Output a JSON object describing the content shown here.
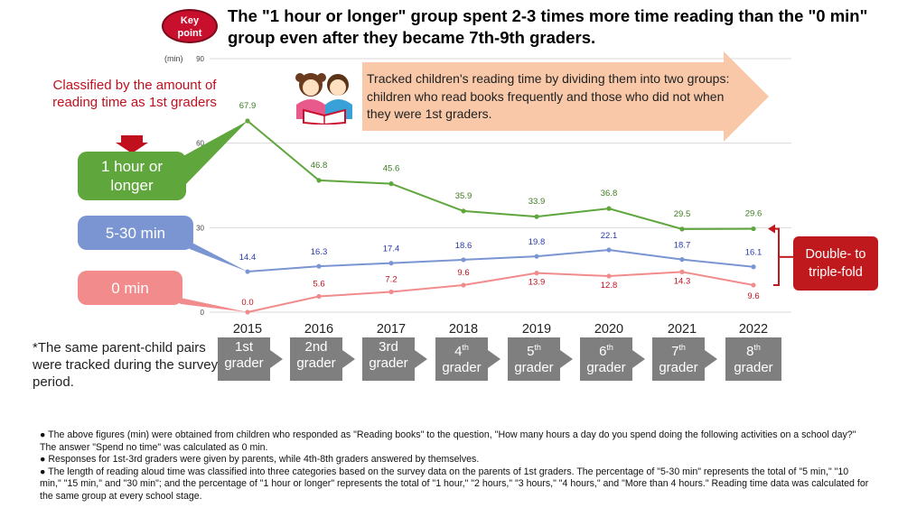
{
  "badge": {
    "line1": "Key",
    "line2": "point"
  },
  "headline": "The \"1 hour or longer\" group spent 2-3 times more time reading than the \"0 min\" group even after they became 7th-9th graders.",
  "left_note": "Classified by the amount of reading time as 1st graders",
  "groups": [
    "1 hour or longer",
    "5-30 min",
    "0 min"
  ],
  "banner_text": "Tracked children's reading time by dividing them into two groups: children who read books frequently and those who did not when they were 1st graders.",
  "double_triple": "Double- to triple-fold",
  "footnote": "*The same parent-child pairs were tracked during the survey period.",
  "grades": [
    {
      "num": "1",
      "sup": "st",
      "word": "grader"
    },
    {
      "num": "2",
      "sup": "nd",
      "word": "grader"
    },
    {
      "num": "3",
      "sup": "rd",
      "word": "grader"
    },
    {
      "num": "4",
      "sup": "th",
      "word": "grader"
    },
    {
      "num": "5",
      "sup": "th",
      "word": "grader"
    },
    {
      "num": "6",
      "sup": "th",
      "word": "grader"
    },
    {
      "num": "7",
      "sup": "th",
      "word": "grader"
    },
    {
      "num": "8",
      "sup": "th",
      "word": "grader"
    }
  ],
  "bullets": [
    "● The above figures (min) were obtained from children who responded as \"Reading books\" to the question, \"How many hours a day do you spend doing the following activities on a school day?\" The answer \"Spend no time\" was calculated as 0 min.",
    "● Responses for 1st-3rd graders were given by parents, while 4th-8th graders answered by themselves.",
    "● The length of reading aloud time was classified into three categories based on the survey data on the parents of 1st graders. The percentage of \"5-30 min\" represents the total of \"5 min,\" \"10 min,\" \"15 min,\" and \"30 min\"; and the percentage of \"1 hour or longer\" represents the total of \"1 hour,\" \"2 hours,\" \"3 hours,\" \"4 hours,\" and \"More than 4 hours.\" Reading time data was calculated for the same group at every school stage."
  ],
  "colors": {
    "green": "#5fa63c",
    "blue": "#7b95d3",
    "pink": "#f28b8b",
    "red": "#c0191d",
    "banner": "#f8c8a8",
    "grade_box": "#7f7f7f"
  },
  "chart_data": {
    "type": "line",
    "ylabel": "(min)",
    "ylim": [
      0,
      90
    ],
    "yticks": [
      0,
      30,
      60,
      90
    ],
    "grid": true,
    "categories": [
      "2015",
      "2016",
      "2017",
      "2018",
      "2019",
      "2020",
      "2021",
      "2022"
    ],
    "series": [
      {
        "name": "1 hour or longer",
        "color": "#5fa63c",
        "values": [
          67.9,
          46.8,
          45.6,
          35.9,
          33.9,
          36.8,
          29.5,
          29.6
        ],
        "labels": [
          "67.9",
          "46.8",
          "45.6",
          "35.9",
          "33.9",
          "36.8",
          "29.5",
          "29.6"
        ]
      },
      {
        "name": "5-30 min",
        "color": "#7b95d3",
        "values": [
          14.4,
          16.3,
          17.4,
          18.6,
          19.8,
          22.1,
          18.7,
          16.1
        ],
        "labels": [
          "14.4",
          "16.3",
          "17.4",
          "18.6",
          "19.8",
          "22.1",
          "18.7",
          "16.1"
        ]
      },
      {
        "name": "0 min",
        "color": "#f28b8b",
        "values": [
          0.0,
          5.6,
          7.2,
          9.6,
          13.9,
          12.8,
          14.3,
          9.6
        ],
        "labels": [
          "0.0",
          "5.6",
          "7.2",
          "9.6",
          "13.9",
          "12.8",
          "14.3",
          "9.6"
        ]
      }
    ]
  }
}
